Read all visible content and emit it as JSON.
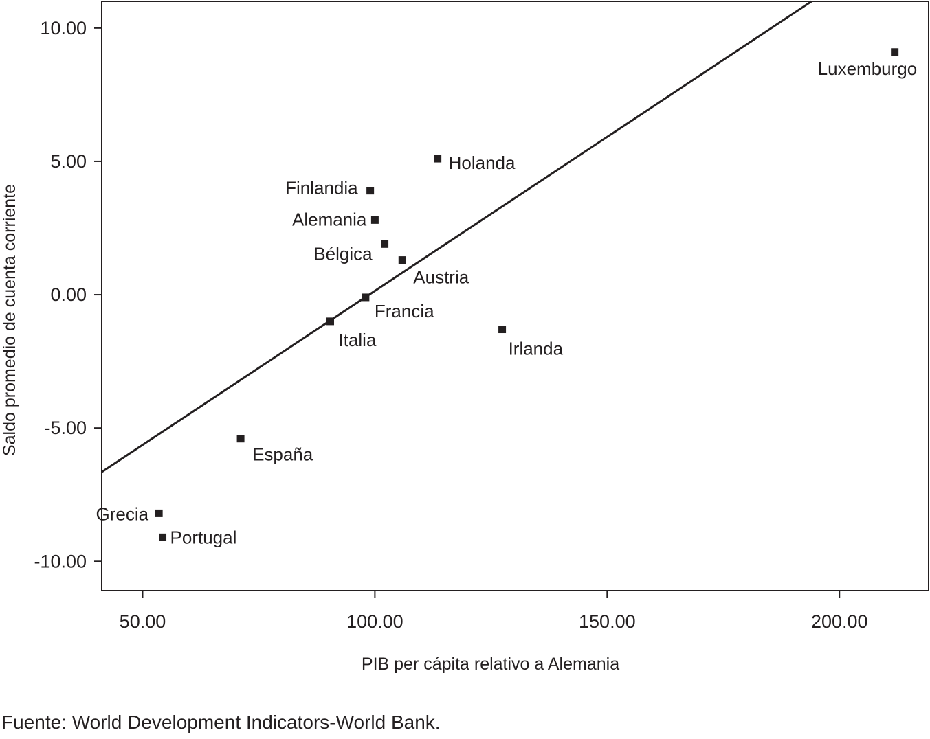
{
  "chart_data": {
    "type": "scatter",
    "title": "",
    "xlabel": "PIB per cápita relativo a Alemania",
    "ylabel": "Saldo promedio de cuenta corriente",
    "xlim": [
      41.2,
      219.2
    ],
    "ylim": [
      -11.1,
      11.0
    ],
    "x_ticks": [
      50,
      100,
      150,
      200
    ],
    "x_tick_labels": [
      "50.00",
      "100.00",
      "150.00",
      "200.00"
    ],
    "y_ticks": [
      10,
      5,
      0,
      -5,
      -10
    ],
    "y_tick_labels": [
      "10.00",
      "5.00",
      "0.00",
      "-5.00",
      "-10.00"
    ],
    "grid": false,
    "legend": "none",
    "marker": "square",
    "marker_color": "#231f20",
    "points": [
      {
        "label": "Luxemburgo",
        "x": 211.9,
        "y": 9.1
      },
      {
        "label": "Holanda",
        "x": 113.5,
        "y": 5.1
      },
      {
        "label": "Finlandia",
        "x": 99.0,
        "y": 3.9
      },
      {
        "label": "Alemania",
        "x": 100.0,
        "y": 2.8
      },
      {
        "label": "Bélgica",
        "x": 102.1,
        "y": 1.9
      },
      {
        "label": "Austria",
        "x": 105.9,
        "y": 1.3
      },
      {
        "label": "Francia",
        "x": 98.0,
        "y": -0.1
      },
      {
        "label": "Italia",
        "x": 90.4,
        "y": -1.0
      },
      {
        "label": "Irlanda",
        "x": 127.4,
        "y": -1.3
      },
      {
        "label": "España",
        "x": 71.1,
        "y": -5.4
      },
      {
        "label": "Grecia",
        "x": 53.5,
        "y": -8.2
      },
      {
        "label": "Portugal",
        "x": 54.3,
        "y": -9.1
      }
    ],
    "trendline": {
      "x": [
        41.2,
        194.0
      ],
      "y": [
        -6.65,
        11.0
      ]
    }
  },
  "source_note": "Fuente: World Development Indicators-World Bank."
}
